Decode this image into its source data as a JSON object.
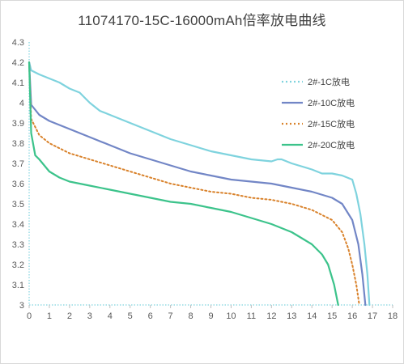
{
  "chart_data": {
    "type": "line",
    "title": "11074170-15C-16000mAh倍率放电曲线",
    "xlabel": "",
    "ylabel": "",
    "xlim": [
      0,
      18
    ],
    "ylim": [
      3,
      4.3
    ],
    "x_ticks": [
      "0",
      "1",
      "2",
      "3",
      "4",
      "5",
      "6",
      "7",
      "8",
      "9",
      "10",
      "11",
      "12",
      "13",
      "14",
      "15",
      "16",
      "17",
      "18"
    ],
    "y_ticks": [
      "3",
      "3.1",
      "3.2",
      "3.3",
      "3.4",
      "3.5",
      "3.6",
      "3.7",
      "3.8",
      "3.9",
      "4",
      "4.1",
      "4.2",
      "4.3"
    ],
    "grid": false,
    "legend_position": "top-right",
    "series": [
      {
        "name": "2#-1C放电",
        "color": "#7fd3de",
        "style": "solid",
        "points": [
          [
            0,
            4.2
          ],
          [
            0.1,
            4.16
          ],
          [
            0.5,
            4.14
          ],
          [
            1,
            4.12
          ],
          [
            1.5,
            4.1
          ],
          [
            2,
            4.07
          ],
          [
            2.5,
            4.05
          ],
          [
            2.8,
            4.02
          ],
          [
            3,
            4.0
          ],
          [
            3.5,
            3.96
          ],
          [
            4,
            3.94
          ],
          [
            5,
            3.9
          ],
          [
            6,
            3.86
          ],
          [
            7,
            3.82
          ],
          [
            8,
            3.79
          ],
          [
            9,
            3.76
          ],
          [
            10,
            3.74
          ],
          [
            11,
            3.72
          ],
          [
            12,
            3.71
          ],
          [
            12.3,
            3.72
          ],
          [
            12.5,
            3.72
          ],
          [
            13,
            3.7
          ],
          [
            14,
            3.67
          ],
          [
            14.5,
            3.65
          ],
          [
            15,
            3.65
          ],
          [
            15.5,
            3.64
          ],
          [
            16,
            3.62
          ],
          [
            16.2,
            3.55
          ],
          [
            16.4,
            3.45
          ],
          [
            16.6,
            3.3
          ],
          [
            16.75,
            3.15
          ],
          [
            16.85,
            3.0
          ]
        ]
      },
      {
        "name": "2#-10C放电",
        "color": "#7286c6",
        "style": "solid",
        "points": [
          [
            0,
            4.2
          ],
          [
            0.1,
            3.99
          ],
          [
            0.5,
            3.94
          ],
          [
            1,
            3.91
          ],
          [
            2,
            3.87
          ],
          [
            3,
            3.83
          ],
          [
            4,
            3.79
          ],
          [
            5,
            3.75
          ],
          [
            6,
            3.72
          ],
          [
            7,
            3.69
          ],
          [
            8,
            3.66
          ],
          [
            9,
            3.64
          ],
          [
            10,
            3.62
          ],
          [
            11,
            3.61
          ],
          [
            12,
            3.6
          ],
          [
            13,
            3.58
          ],
          [
            14,
            3.56
          ],
          [
            15,
            3.53
          ],
          [
            15.5,
            3.5
          ],
          [
            16,
            3.42
          ],
          [
            16.3,
            3.3
          ],
          [
            16.5,
            3.15
          ],
          [
            16.65,
            3.0
          ]
        ]
      },
      {
        "name": "2#-15C放电",
        "color": "#d9822b",
        "style": "dotted",
        "points": [
          [
            0,
            4.2
          ],
          [
            0.1,
            3.92
          ],
          [
            0.5,
            3.84
          ],
          [
            1,
            3.8
          ],
          [
            2,
            3.75
          ],
          [
            3,
            3.72
          ],
          [
            4,
            3.69
          ],
          [
            5,
            3.66
          ],
          [
            6,
            3.63
          ],
          [
            7,
            3.6
          ],
          [
            8,
            3.58
          ],
          [
            9,
            3.56
          ],
          [
            10,
            3.55
          ],
          [
            11,
            3.53
          ],
          [
            12,
            3.52
          ],
          [
            13,
            3.5
          ],
          [
            14,
            3.47
          ],
          [
            15,
            3.42
          ],
          [
            15.5,
            3.36
          ],
          [
            15.8,
            3.28
          ],
          [
            16,
            3.2
          ],
          [
            16.2,
            3.1
          ],
          [
            16.35,
            3.0
          ]
        ]
      },
      {
        "name": "2#-20C放电",
        "color": "#3cc38b",
        "style": "solid",
        "points": [
          [
            0,
            4.2
          ],
          [
            0.1,
            3.85
          ],
          [
            0.3,
            3.74
          ],
          [
            0.5,
            3.72
          ],
          [
            1,
            3.66
          ],
          [
            1.5,
            3.63
          ],
          [
            2,
            3.61
          ],
          [
            3,
            3.59
          ],
          [
            4,
            3.57
          ],
          [
            5,
            3.55
          ],
          [
            6,
            3.53
          ],
          [
            7,
            3.51
          ],
          [
            8,
            3.5
          ],
          [
            9,
            3.48
          ],
          [
            10,
            3.46
          ],
          [
            11,
            3.43
          ],
          [
            12,
            3.4
          ],
          [
            13,
            3.36
          ],
          [
            13.5,
            3.33
          ],
          [
            14,
            3.3
          ],
          [
            14.5,
            3.25
          ],
          [
            14.8,
            3.2
          ],
          [
            15.1,
            3.1
          ],
          [
            15.3,
            3.0
          ]
        ]
      }
    ]
  }
}
